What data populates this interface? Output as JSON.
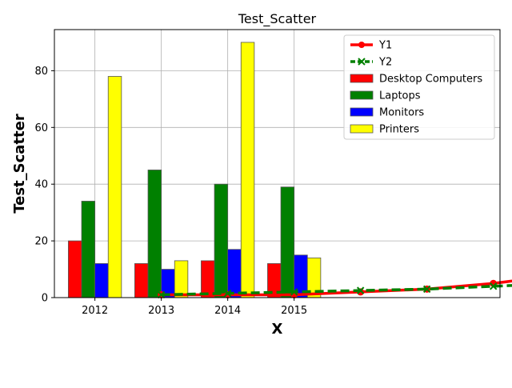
{
  "chart_data": {
    "type": "bar",
    "title": "Test_Scatter",
    "xlabel": "X",
    "ylabel": "Test_Scatter",
    "ylim": [
      0,
      94.5
    ],
    "y_ticks": [
      0,
      20,
      40,
      60,
      80
    ],
    "grid": true,
    "legend_position": "top-right",
    "categories": [
      "2012",
      "2013",
      "2014",
      "2015"
    ],
    "bar_series": [
      {
        "name": "Desktop Computers",
        "color": "#ff0000",
        "values": [
          20,
          12,
          13,
          12
        ]
      },
      {
        "name": "Laptops",
        "color": "#008000",
        "values": [
          34,
          45,
          40,
          39
        ]
      },
      {
        "name": "Monitors",
        "color": "#0000ff",
        "values": [
          12,
          10,
          17,
          15
        ]
      },
      {
        "name": "Printers",
        "color": "#ffff00",
        "values": [
          78,
          13,
          90,
          14
        ]
      }
    ],
    "line_series": [
      {
        "name": "Y1",
        "color": "#ff0000",
        "marker": "circle",
        "dash": "solid",
        "x": [
          1,
          2,
          3,
          4,
          5,
          6,
          7
        ],
        "values": [
          1,
          1,
          1,
          2,
          3,
          5,
          8
        ]
      },
      {
        "name": "Y2",
        "color": "#008000",
        "marker": "x",
        "dash": "dashed",
        "x": [
          1,
          2,
          3,
          4,
          5,
          6,
          7
        ],
        "values": [
          1,
          1.5,
          2,
          2.5,
          3,
          4,
          5
        ]
      }
    ]
  }
}
